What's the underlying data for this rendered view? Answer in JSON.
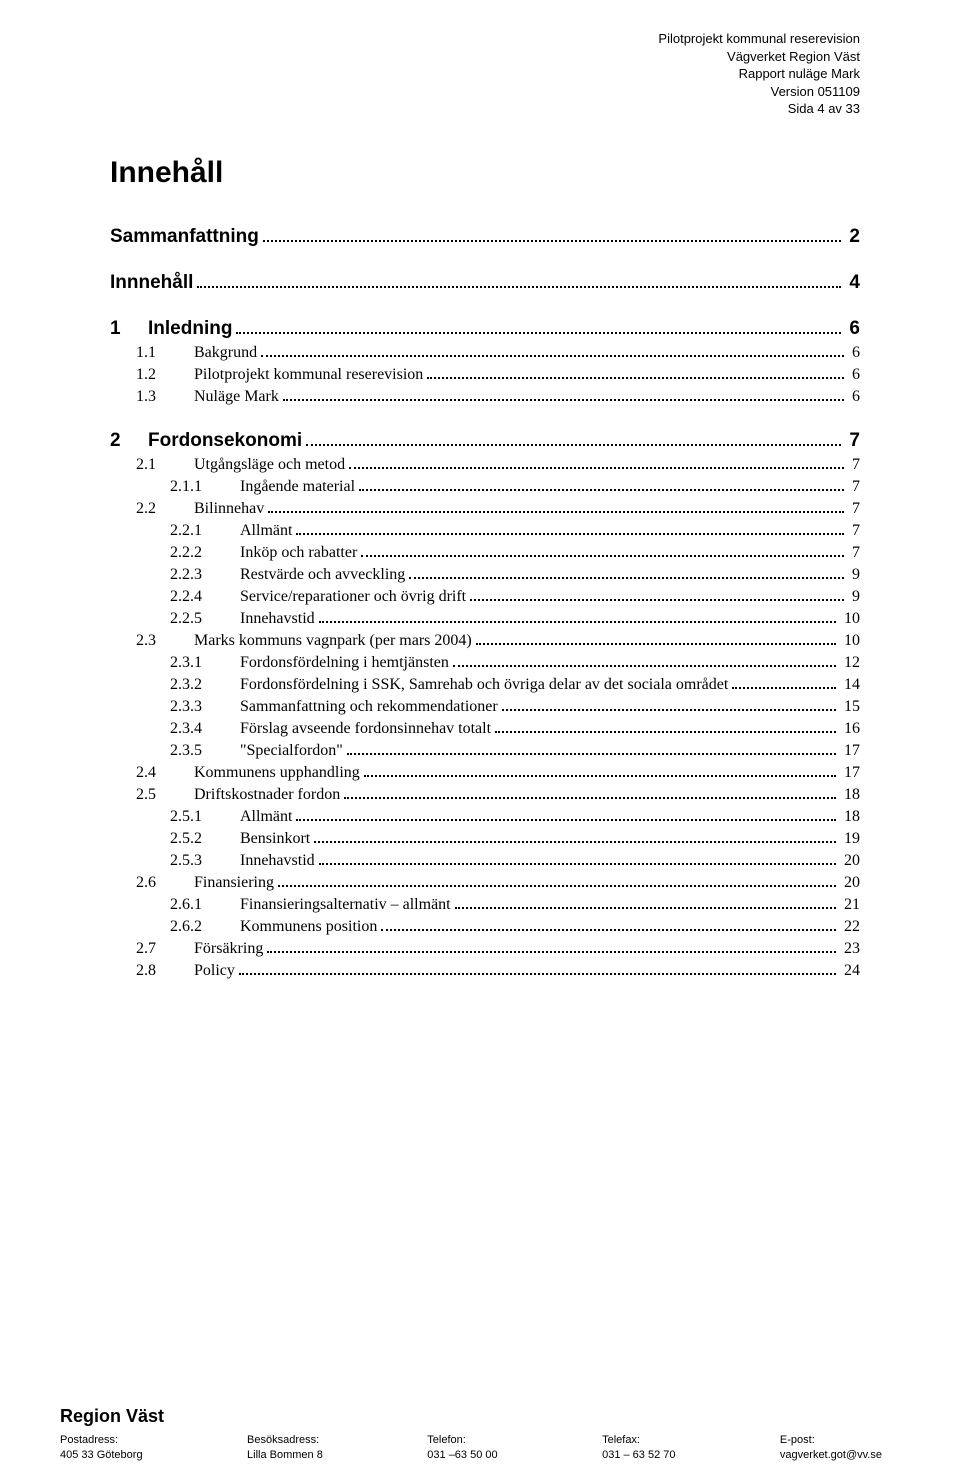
{
  "header": {
    "line1": "Pilotprojekt kommunal reserevision",
    "line2": "Vägverket Region Väst",
    "line3": "Rapport  nuläge Mark",
    "line4": "Version 051109",
    "line5": "Sida 4 av 33"
  },
  "title": "Innehåll",
  "toc": [
    {
      "level": 0,
      "num": "",
      "label": "Sammanfattning",
      "page": "2"
    },
    {
      "level": 0,
      "num": "",
      "label": "Innnehåll",
      "page": "4"
    },
    {
      "level": 0,
      "num": "1",
      "label": "Inledning",
      "page": "6"
    },
    {
      "level": 1,
      "num": "1.1",
      "label": "Bakgrund",
      "page": "6"
    },
    {
      "level": 1,
      "num": "1.2",
      "label": "Pilotprojekt kommunal reserevision",
      "page": "6"
    },
    {
      "level": 1,
      "num": "1.3",
      "label": "Nuläge Mark",
      "page": "6"
    },
    {
      "level": 0,
      "num": "2",
      "label": "Fordonsekonomi",
      "page": "7"
    },
    {
      "level": 1,
      "num": "2.1",
      "label": "Utgångsläge och metod",
      "page": "7"
    },
    {
      "level": 2,
      "num": "2.1.1",
      "label": "Ingående material",
      "page": "7"
    },
    {
      "level": 1,
      "num": "2.2",
      "label": "Bilinnehav",
      "page": "7"
    },
    {
      "level": 2,
      "num": "2.2.1",
      "label": "Allmänt",
      "page": "7"
    },
    {
      "level": 2,
      "num": "2.2.2",
      "label": "Inköp och rabatter",
      "page": "7"
    },
    {
      "level": 2,
      "num": "2.2.3",
      "label": "Restvärde och avveckling",
      "page": "9"
    },
    {
      "level": 2,
      "num": "2.2.4",
      "label": "Service/reparationer och övrig drift",
      "page": "9"
    },
    {
      "level": 2,
      "num": "2.2.5",
      "label": "Innehavstid",
      "page": "10"
    },
    {
      "level": 1,
      "num": "2.3",
      "label": "Marks kommuns vagnpark (per mars 2004)",
      "page": "10"
    },
    {
      "level": 2,
      "num": "2.3.1",
      "label": "Fordonsfördelning i hemtjänsten",
      "page": "12"
    },
    {
      "level": 2,
      "num": "2.3.2",
      "label": "Fordonsfördelning i SSK,  Samrehab och övriga delar av det sociala området",
      "page": "14"
    },
    {
      "level": 2,
      "num": "2.3.3",
      "label": "Sammanfattning och rekommendationer",
      "page": "15"
    },
    {
      "level": 2,
      "num": "2.3.4",
      "label": "Förslag avseende fordonsinnehav totalt",
      "page": "16"
    },
    {
      "level": 2,
      "num": "2.3.5",
      "label": "\"Specialfordon\"",
      "page": "17"
    },
    {
      "level": 1,
      "num": "2.4",
      "label": "Kommunens upphandling",
      "page": "17"
    },
    {
      "level": 1,
      "num": "2.5",
      "label": "Driftskostnader fordon",
      "page": "18"
    },
    {
      "level": 2,
      "num": "2.5.1",
      "label": "Allmänt",
      "page": "18"
    },
    {
      "level": 2,
      "num": "2.5.2",
      "label": "Bensinkort",
      "page": "19"
    },
    {
      "level": 2,
      "num": "2.5.3",
      "label": "Innehavstid",
      "page": "20"
    },
    {
      "level": 1,
      "num": "2.6",
      "label": "Finansiering",
      "page": "20"
    },
    {
      "level": 2,
      "num": "2.6.1",
      "label": "Finansieringsalternativ – allmänt",
      "page": "21"
    },
    {
      "level": 2,
      "num": "2.6.2",
      "label": "Kommunens position",
      "page": "22"
    },
    {
      "level": 1,
      "num": "2.7",
      "label": "Försäkring",
      "page": "23"
    },
    {
      "level": 1,
      "num": "2.8",
      "label": "Policy",
      "page": "24"
    }
  ],
  "footer": {
    "brand": "Region Väst",
    "cols": [
      {
        "h": "Postadress:",
        "v": "405 33 Göteborg"
      },
      {
        "h": "Besöksadress:",
        "v": "Lilla Bommen 8"
      },
      {
        "h": "Telefon:",
        "v": "031 –63 50 00"
      },
      {
        "h": "Telefax:",
        "v": "031 – 63 52 70"
      },
      {
        "h": "E-post:",
        "v": "vagverket.got@vv.se"
      }
    ]
  }
}
